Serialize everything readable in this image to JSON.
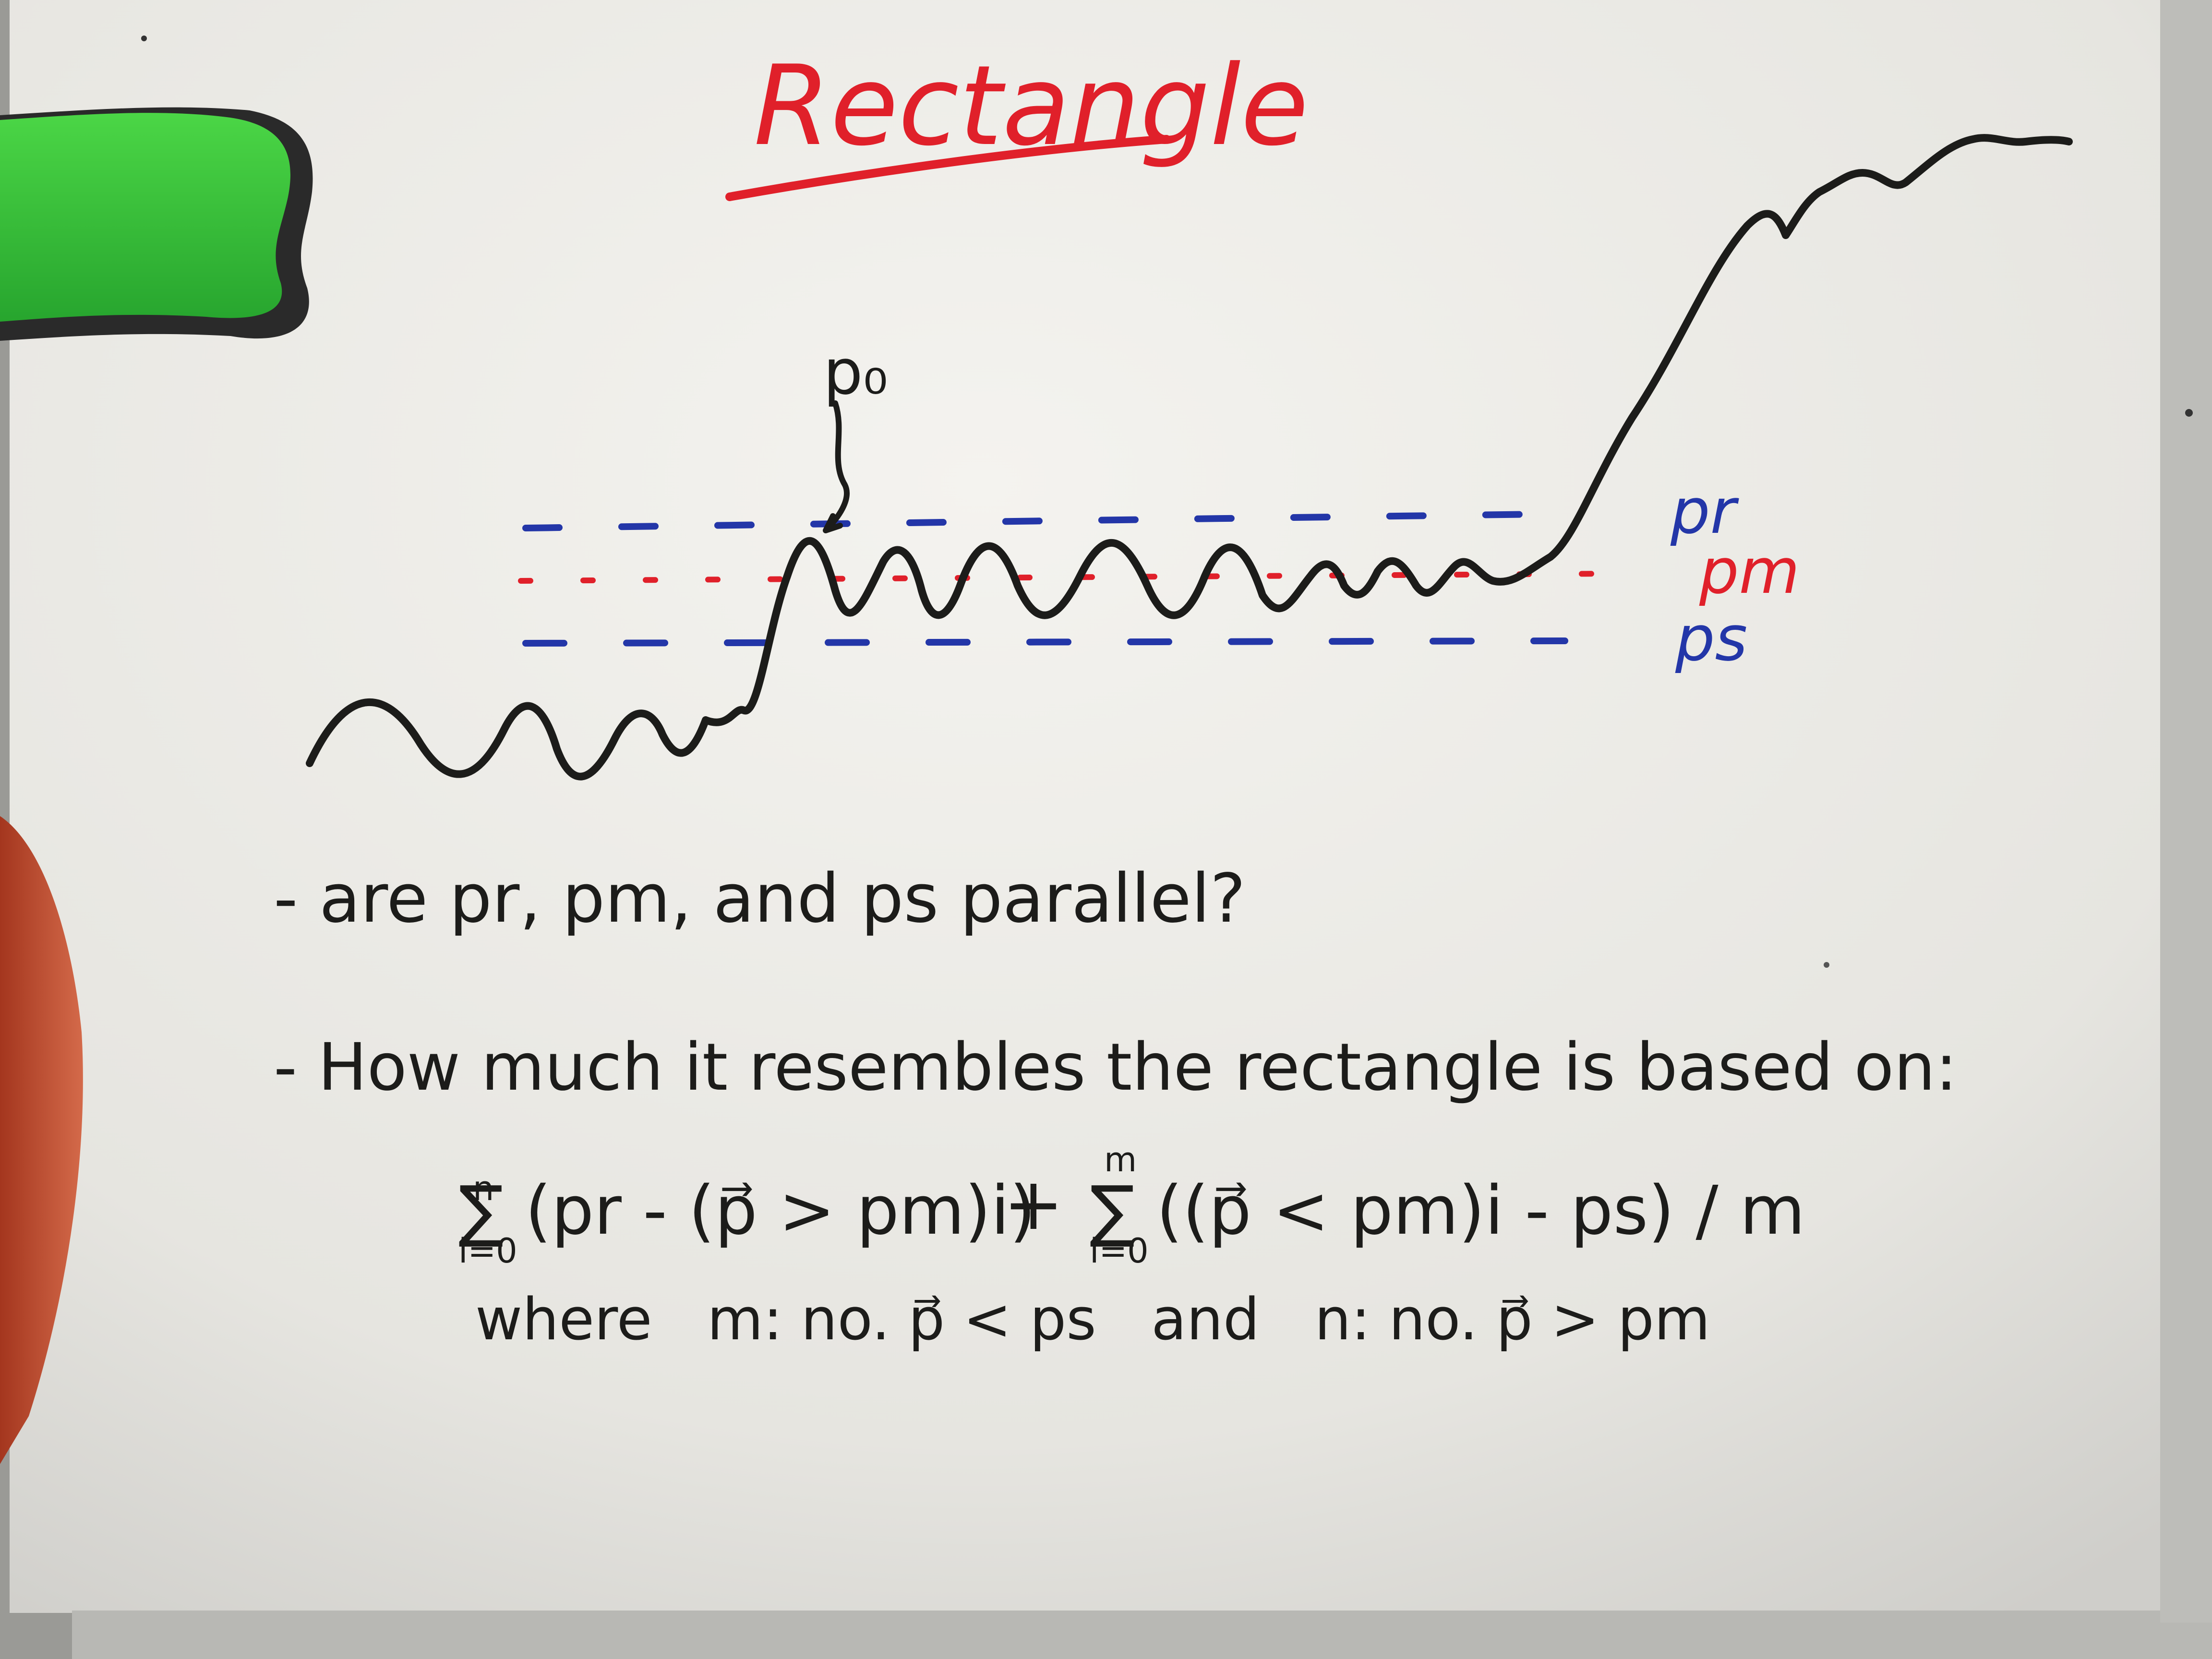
{
  "board": {
    "title": "Rectangle",
    "label_p0": "p₀",
    "levels": {
      "resistance": {
        "label": "pr",
        "color": "#2336a8"
      },
      "mean": {
        "label": "pm",
        "color": "#e0202a"
      },
      "support": {
        "label": "ps",
        "color": "#2336a8"
      }
    },
    "bullets": [
      "- are pr, pm, and ps parallel?",
      "- How much it resembles the rectangle is based on:"
    ],
    "formula_left": "∑ (pr - (p⃗ > pm)i)",
    "formula_left_limits": {
      "upper": "n",
      "lower": "i=0"
    },
    "formula_plus": "+",
    "formula_right": "∑ ((p⃗ < pm)i - ps) / m",
    "formula_right_limits": {
      "upper": "m",
      "lower": "i=0"
    },
    "where_line": "where   m: no. p⃗ < ps   and   n: no. p⃗ > pm"
  },
  "colors": {
    "ink_black": "#1c1c1a",
    "ink_red": "#e0202a",
    "ink_blue": "#2336a8",
    "board": "#ecebe6",
    "frame": "#c9c9c6",
    "eraser": "#39c43a"
  }
}
